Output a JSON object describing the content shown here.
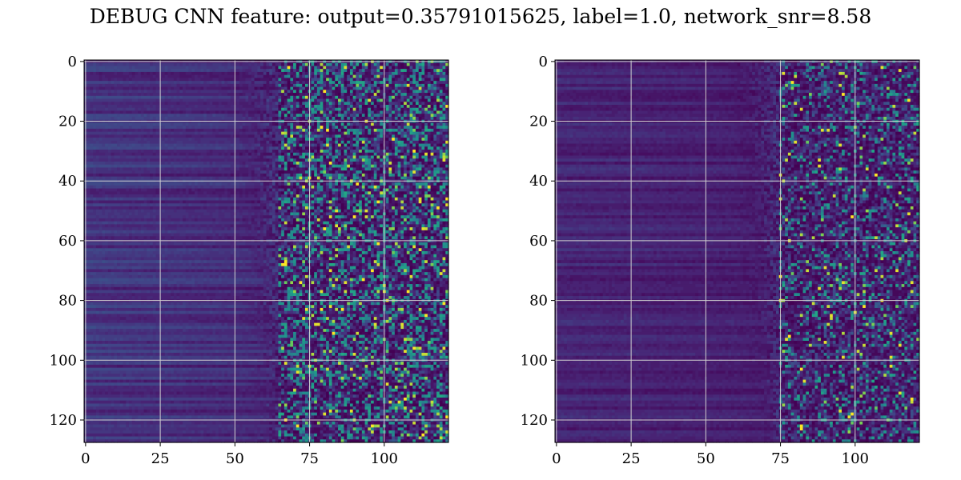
{
  "figure": {
    "title": "DEBUG CNN feature: output=0.35791015625, label=1.0, network_snr=8.58"
  },
  "chart_data": [
    {
      "type": "heatmap",
      "title": "",
      "xlabel": "",
      "ylabel": "",
      "xlim": [
        -0.5,
        121.5
      ],
      "ylim": [
        127.5,
        -0.5
      ],
      "rows": 128,
      "cols": 122,
      "colormap": "viridis",
      "grid": true,
      "x_ticks": [
        0,
        25,
        50,
        75,
        100
      ],
      "x_tick_labels": [
        "0",
        "25",
        "50",
        "75",
        "100"
      ],
      "y_ticks": [
        0,
        20,
        40,
        60,
        80,
        100,
        120
      ],
      "y_tick_labels": [
        "0",
        "20",
        "40",
        "60",
        "80",
        "100",
        "120"
      ],
      "pattern": {
        "left_band_intensity": 0.22,
        "noisy_region_start_col": 65,
        "bright_outlier_rate": 0.05
      }
    },
    {
      "type": "heatmap",
      "title": "",
      "xlabel": "",
      "ylabel": "",
      "xlim": [
        -0.5,
        121.5
      ],
      "ylim": [
        127.5,
        -0.5
      ],
      "rows": 128,
      "cols": 122,
      "colormap": "viridis",
      "grid": true,
      "x_ticks": [
        0,
        25,
        50,
        75,
        100
      ],
      "x_tick_labels": [
        "0",
        "25",
        "50",
        "75",
        "100"
      ],
      "y_ticks": [
        0,
        20,
        40,
        60,
        80,
        100,
        120
      ],
      "y_tick_labels": [
        "0",
        "20",
        "40",
        "60",
        "80",
        "100",
        "120"
      ],
      "pattern": {
        "left_band_intensity": 0.15,
        "noisy_region_start_col": 75,
        "bright_outlier_rate": 0.025
      }
    }
  ]
}
